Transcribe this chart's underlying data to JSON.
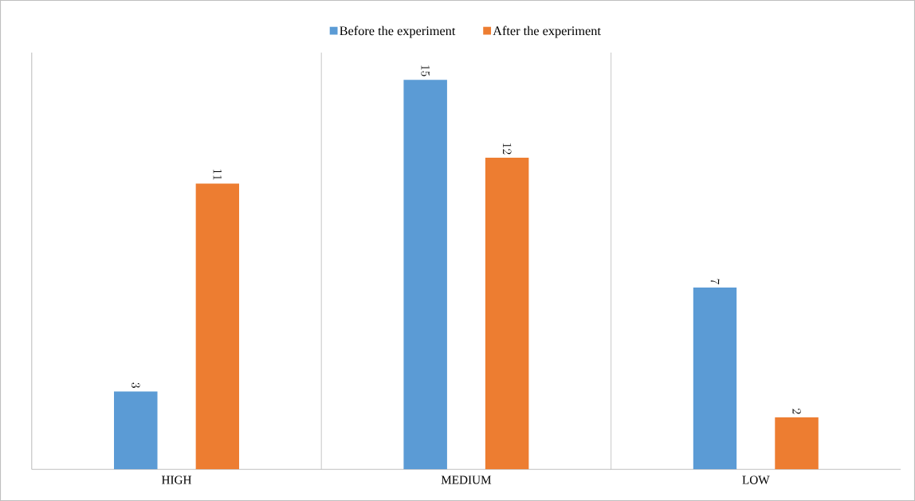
{
  "chart_data": {
    "type": "bar",
    "categories": [
      "HIGH",
      "MEDIUM",
      "LOW"
    ],
    "series": [
      {
        "name": "Before the experiment",
        "color": "#5b9bd5",
        "values": [
          3,
          15,
          7
        ]
      },
      {
        "name": "After the experiment",
        "color": "#ed7d31",
        "values": [
          11,
          12,
          2
        ]
      }
    ],
    "data_labels": true,
    "grid": "x",
    "legend": "top"
  }
}
